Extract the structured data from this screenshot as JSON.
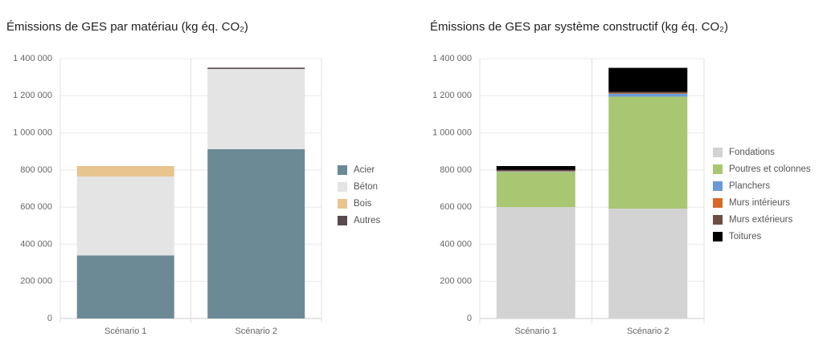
{
  "chart_data": [
    {
      "type": "stacked-bar",
      "title": "Émissions de GES par matériau (kg éq. CO₂)",
      "categories": [
        "Scénario 1",
        "Scénario 2"
      ],
      "series": [
        {
          "name": "Acier",
          "color": "#6b8a96",
          "values": [
            340000,
            912000
          ]
        },
        {
          "name": "Béton",
          "color": "#e4e4e4",
          "values": [
            425000,
            432000
          ]
        },
        {
          "name": "Bois",
          "color": "#e8c48e",
          "values": [
            56000,
            0
          ]
        },
        {
          "name": "Autres",
          "color": "#5a4a4f",
          "values": [
            0,
            7000
          ]
        }
      ],
      "ylim": [
        0,
        1400000
      ],
      "yticks": [
        0,
        {
          "value": 200000,
          "label": "200 000"
        },
        {
          "value": 400000,
          "label": "400 000"
        },
        {
          "value": 600000,
          "label": "600 000"
        },
        {
          "value": 800000,
          "label": "800 000"
        },
        {
          "value": 1000000,
          "label": "1 000 000"
        },
        {
          "value": 1200000,
          "label": "1 200 000"
        },
        {
          "value": 1400000,
          "label": "1 400 000"
        }
      ],
      "grid": true,
      "legend": "right"
    },
    {
      "type": "stacked-bar",
      "title": "Émissions de GES par système constructif (kg éq. CO₂)",
      "categories": [
        "Scénario 1",
        "Scénario 2"
      ],
      "series": [
        {
          "name": "Fondations",
          "color": "#d3d3d3",
          "values": [
            600000,
            592000
          ]
        },
        {
          "name": "Poutres et colonnes",
          "color": "#a9c672",
          "values": [
            190000,
            603000
          ]
        },
        {
          "name": "Planchers",
          "color": "#6a9bd8",
          "values": [
            3000,
            15000
          ]
        },
        {
          "name": "Murs intérieurs",
          "color": "#d4692a",
          "values": [
            2000,
            3000
          ]
        },
        {
          "name": "Murs extérieurs",
          "color": "#6b4f45",
          "values": [
            5000,
            7000
          ]
        },
        {
          "name": "Toitures",
          "color": "#000000",
          "values": [
            21000,
            130000
          ]
        }
      ],
      "ylim": [
        0,
        1400000
      ],
      "yticks": [
        0,
        {
          "value": 200000,
          "label": "200 000"
        },
        {
          "value": 400000,
          "label": "400 000"
        },
        {
          "value": 600000,
          "label": "600 000"
        },
        {
          "value": 800000,
          "label": "800 000"
        },
        {
          "value": 1000000,
          "label": "1 000 000"
        },
        {
          "value": 1200000,
          "label": "1 200 000"
        },
        {
          "value": 1400000,
          "label": "1 400 000"
        }
      ],
      "grid": true,
      "legend": "right"
    }
  ]
}
